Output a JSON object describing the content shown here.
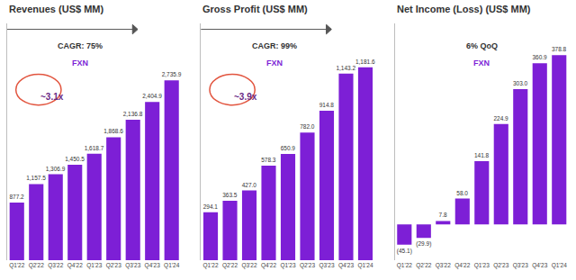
{
  "chart_data": [
    {
      "type": "bar",
      "title": "Revenues (US$ MM)",
      "categories": [
        "Q1'22",
        "Q2'22",
        "Q3'22",
        "Q4'22",
        "Q1'23",
        "Q2'23",
        "Q3'23",
        "Q4'23",
        "Q1'24"
      ],
      "values": [
        877.2,
        1157.5,
        1306.9,
        1450.5,
        1618.7,
        1868.6,
        2136.8,
        2404.9,
        2735.9
      ],
      "value_labels": [
        "877.2",
        "1,157.5",
        "1,306.9",
        "1,450.5",
        "1,618.7",
        "1,868.6",
        "2,136.8",
        "2,404.9",
        "2,735.9"
      ],
      "color": "#7d1fd6",
      "ylim": [
        0,
        3600
      ],
      "data_labels": true,
      "tick_labels": "x",
      "annotations": [
        "CAGR: 75%",
        "FXN",
        "~3.1x"
      ]
    },
    {
      "type": "bar",
      "title": "Gross Profit (US$ MM)",
      "categories": [
        "Q1'22",
        "Q2'22",
        "Q3'22",
        "Q4'22",
        "Q1'23",
        "Q2'23",
        "Q3'23",
        "Q4'23",
        "Q1'24"
      ],
      "values": [
        294.1,
        363.5,
        427.0,
        578.3,
        650.9,
        782.0,
        914.8,
        1143.2,
        1181.6
      ],
      "value_labels": [
        "294.1",
        "363.5",
        "427.0",
        "578.3",
        "650.9",
        "782.0",
        "914.8",
        "1,143.2",
        "1,181.6"
      ],
      "color": "#7d1fd6",
      "ylim": [
        0,
        1450
      ],
      "data_labels": true,
      "tick_labels": "x",
      "annotations": [
        "CAGR: 99%",
        "FXN",
        "~3.9x"
      ]
    },
    {
      "type": "bar",
      "title": "Net Income (Loss) (US$ MM)",
      "categories": [
        "Q1'22",
        "Q2'22",
        "Q3'22",
        "Q4'22",
        "Q1'23",
        "Q2'23",
        "Q3'23",
        "Q4'23",
        "Q1'24"
      ],
      "values": [
        -45.1,
        -29.9,
        7.8,
        58.0,
        141.8,
        224.9,
        303.0,
        360.9,
        378.8
      ],
      "value_labels": [
        "(45.1)",
        "(29.9)",
        "7.8",
        "58.0",
        "141.8",
        "224.9",
        "303.0",
        "360.9",
        "378.8"
      ],
      "color": "#7d1fd6",
      "ylim": [
        -80,
        450
      ],
      "data_labels": true,
      "tick_labels": "x",
      "annotations": [
        "6% QoQ",
        "FXN"
      ]
    }
  ]
}
